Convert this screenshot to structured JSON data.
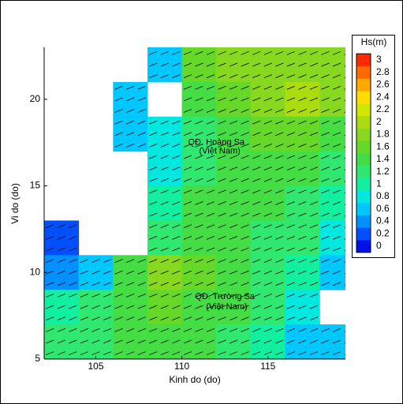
{
  "chart_data": {
    "type": "heatmap",
    "xlabel": "Kinh do (do)",
    "ylabel": "Vi do (do)",
    "xlim": [
      102,
      119.5
    ],
    "xticks": [
      105,
      110,
      115
    ],
    "ylim": [
      5,
      23
    ],
    "yticks": [
      5,
      10,
      15,
      20
    ],
    "x": [
      103,
      105,
      107,
      109,
      111,
      113,
      115,
      117,
      119
    ],
    "y": [
      22,
      20,
      18,
      16,
      14,
      12,
      10,
      8,
      6
    ],
    "values": [
      [
        null,
        null,
        null,
        0.6,
        1.5,
        1.7,
        1.8,
        1.9,
        1.8
      ],
      [
        null,
        null,
        0.6,
        null,
        1.4,
        1.6,
        1.8,
        2.0,
        1.8
      ],
      [
        null,
        null,
        0.5,
        0.8,
        1.1,
        1.4,
        1.5,
        1.5,
        1.3
      ],
      [
        null,
        null,
        null,
        0.8,
        1.2,
        1.4,
        1.4,
        1.3,
        1.1
      ],
      [
        null,
        null,
        null,
        1.0,
        1.3,
        1.3,
        1.3,
        1.2,
        0.9
      ],
      [
        0.3,
        null,
        null,
        1.2,
        1.4,
        1.3,
        1.2,
        1.1,
        0.8
      ],
      [
        0.4,
        0.5,
        1.4,
        1.7,
        1.5,
        1.3,
        1.1,
        0.9,
        0.6
      ],
      [
        1.0,
        1.2,
        1.4,
        1.5,
        1.4,
        1.3,
        1.1,
        0.8,
        null
      ],
      [
        1.1,
        1.2,
        1.3,
        1.4,
        1.3,
        1.2,
        1.0,
        0.7,
        0.7
      ]
    ],
    "colorbar": {
      "title": "Hs(m)",
      "ticks": [
        0,
        0.2,
        0.4,
        0.6,
        0.8,
        1,
        1.2,
        1.4,
        1.6,
        1.8,
        2,
        2.2,
        2.4,
        2.6,
        2.8,
        3
      ],
      "colors": [
        "#0010e8",
        "#0050ff",
        "#0090ff",
        "#00c8ff",
        "#00e8e0",
        "#10f0a0",
        "#30e870",
        "#44dd44",
        "#66d828",
        "#88d820",
        "#aadc10",
        "#d0e800",
        "#ffdc00",
        "#ffa800",
        "#ff6a00",
        "#ff2a00"
      ]
    },
    "annotations": [
      {
        "text": "QĐ. Hoàng Sa",
        "x": 112,
        "y": 17.5
      },
      {
        "text": "(Việt Nam)",
        "x": 112.2,
        "y": 17
      },
      {
        "text": "QĐ. Trường Sa",
        "x": 112.5,
        "y": 8.6
      },
      {
        "text": "(Việt Nam)",
        "x": 112.6,
        "y": 8.0
      }
    ]
  }
}
